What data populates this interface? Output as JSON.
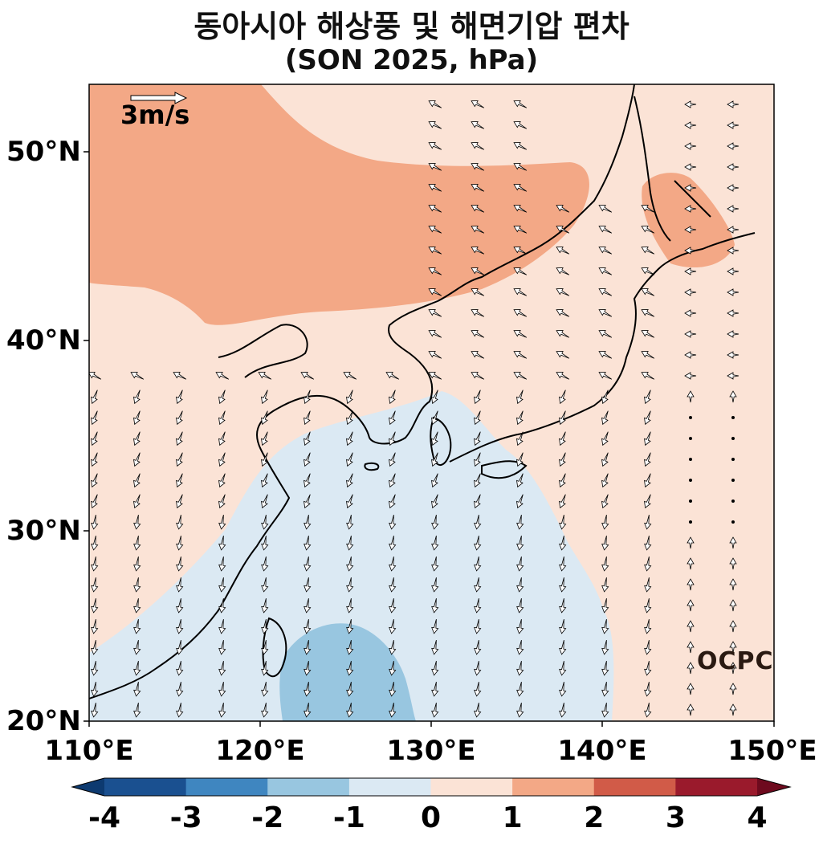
{
  "title_line1": "동아시아 해상풍 및 해면기압 편차",
  "title_line2": "(SON 2025, hPa)",
  "y_ticks": [
    "50°N",
    "40°N",
    "30°N",
    "20°N"
  ],
  "x_ticks": [
    "110°E",
    "120°E",
    "130°E",
    "140°E",
    "150°E"
  ],
  "ref_arrow_label": "3m/s",
  "logo_text": "OCPC",
  "colorbar": {
    "ticks": [
      "-4",
      "-3",
      "-2",
      "-1",
      "0",
      "1",
      "2",
      "3",
      "4"
    ],
    "colors": [
      "#1a5090",
      "#3f86c0",
      "#98c6e0",
      "#dbe9f3",
      "#fbe3d6",
      "#f3a886",
      "#d15b48",
      "#9a1a2c"
    ]
  }
}
